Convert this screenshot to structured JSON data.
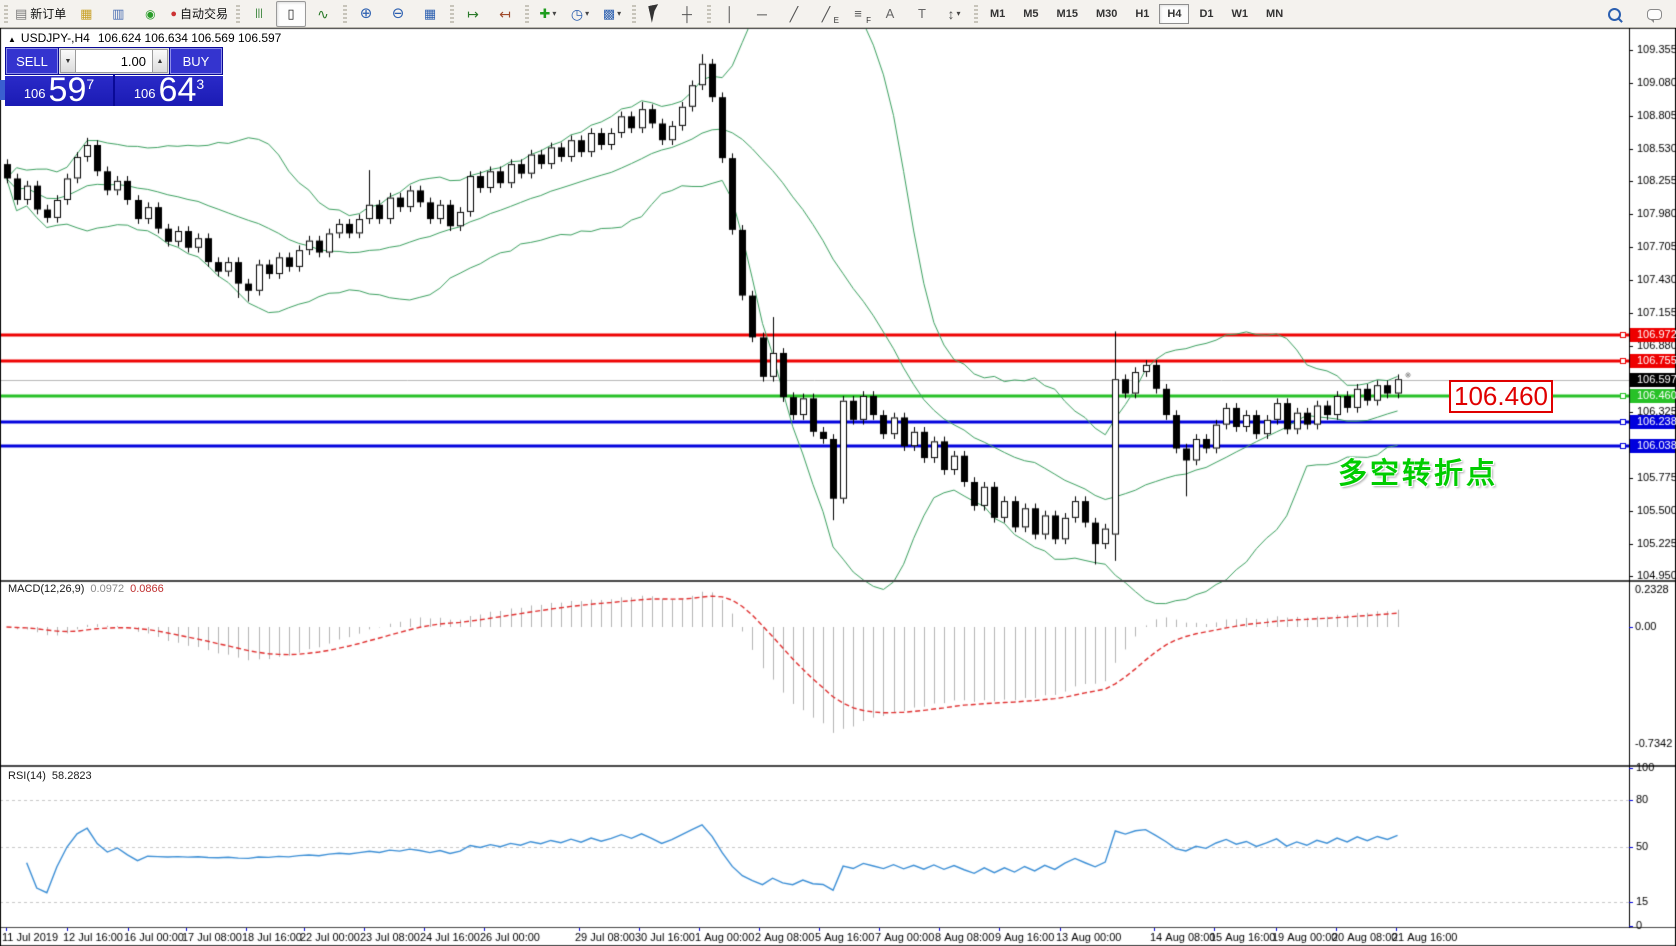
{
  "toolbar": {
    "groups": [
      {
        "items": [
          {
            "name": "new-order",
            "glyph": "doc",
            "label": "新订单"
          },
          {
            "name": "charts",
            "glyph": "chart-gold"
          },
          {
            "name": "market-watch",
            "glyph": "monitor"
          },
          {
            "name": "signals",
            "glyph": "signal"
          },
          {
            "name": "autotrading",
            "glyph": "autotrade",
            "label": "自动交易"
          }
        ]
      },
      {
        "items": [
          {
            "name": "bars-chart",
            "glyph": "bars"
          },
          {
            "name": "candles-chart",
            "glyph": "candles",
            "active": true
          },
          {
            "name": "line-chart",
            "glyph": "linechart"
          }
        ]
      },
      {
        "items": [
          {
            "name": "zoom-in",
            "glyph": "zoomin"
          },
          {
            "name": "zoom-out",
            "glyph": "zoomout"
          },
          {
            "name": "tile-windows",
            "glyph": "tile"
          }
        ]
      },
      {
        "items": [
          {
            "name": "auto-scroll",
            "glyph": "autoscroll"
          },
          {
            "name": "chart-shift",
            "glyph": "chartshift"
          }
        ]
      },
      {
        "items": [
          {
            "name": "indicators",
            "glyph": "indicators",
            "dropdown": true
          },
          {
            "name": "periods",
            "glyph": "clock",
            "dropdown": true
          },
          {
            "name": "templates",
            "glyph": "template",
            "dropdown": true
          }
        ]
      },
      {
        "items": [
          {
            "name": "cursor",
            "glyph": "cursor-css"
          },
          {
            "name": "crosshair",
            "glyph": "crosshair"
          }
        ]
      },
      {
        "items": [
          {
            "name": "vertical-line",
            "glyph": "vline"
          },
          {
            "name": "horizontal-line",
            "glyph": "hline"
          },
          {
            "name": "trendline",
            "glyph": "trend"
          },
          {
            "name": "equidistant-channel",
            "glyph": "channel",
            "sub": "E"
          },
          {
            "name": "fibonacci",
            "glyph": "fibo",
            "sub": "F"
          },
          {
            "name": "text",
            "glyph": "textA"
          },
          {
            "name": "text-label",
            "glyph": "labelT"
          },
          {
            "name": "arrows",
            "glyph": "arrows",
            "dropdown": true
          }
        ]
      }
    ],
    "timeframes": {
      "items": [
        "M1",
        "M5",
        "M15",
        "M30",
        "H1",
        "H4",
        "D1",
        "W1",
        "MN"
      ],
      "active": "H4"
    },
    "right": [
      {
        "name": "search",
        "glyph": "search-css"
      },
      {
        "name": "chat",
        "glyph": "chat-css"
      }
    ]
  },
  "chart_title": {
    "symbol": "USDJPY-,H4",
    "ohlc": "106.624 106.634 106.569 106.597",
    "collapse_glyph": "▲"
  },
  "trade_panel": {
    "sell_label": "SELL",
    "buy_label": "BUY",
    "volume": "1.00",
    "sell_price": {
      "prefix": "106",
      "main": "59",
      "sup": "7"
    },
    "buy_price": {
      "prefix": "106",
      "main": "64",
      "sup": "3"
    }
  },
  "indicators": {
    "macd": {
      "label": "MACD(12,26,9)",
      "value_main": "0.0972",
      "value_signal": "0.0866"
    },
    "rsi": {
      "label": "RSI(14)",
      "value": "58.2823"
    }
  },
  "price_tag": {
    "text": "106.460"
  },
  "annotation": {
    "text": "多空转折点",
    "color": "#00cc00"
  },
  "chart_data": {
    "type": "candlestick",
    "symbol": "USDJPY-",
    "timeframe": "H4",
    "title": "USDJPY-,H4",
    "ohlc_current": {
      "open": 106.624,
      "high": 106.634,
      "low": 106.569,
      "close": 106.597
    },
    "ylim": [
      104.94,
      109.46
    ],
    "open_first": 108.4,
    "closes": [
      108.28,
      108.1,
      108.22,
      108.02,
      107.95,
      108.1,
      108.28,
      108.46,
      108.56,
      108.34,
      108.18,
      108.26,
      108.1,
      107.94,
      108.04,
      107.86,
      107.75,
      107.84,
      107.7,
      107.78,
      107.58,
      107.5,
      107.58,
      107.4,
      107.34,
      107.56,
      107.48,
      107.62,
      107.54,
      107.68,
      107.76,
      107.66,
      107.82,
      107.9,
      107.82,
      107.94,
      108.06,
      107.94,
      108.12,
      108.04,
      108.18,
      108.08,
      107.94,
      108.06,
      107.88,
      108.0,
      108.3,
      108.2,
      108.34,
      108.24,
      108.4,
      108.32,
      108.48,
      108.4,
      108.54,
      108.46,
      108.6,
      108.5,
      108.66,
      108.56,
      108.66,
      108.8,
      108.7,
      108.86,
      108.74,
      108.6,
      108.72,
      108.88,
      109.06,
      109.24,
      108.96,
      108.45,
      107.85,
      107.3,
      106.95,
      106.62,
      106.82,
      106.45,
      106.3,
      106.44,
      106.16,
      106.1,
      105.6,
      106.42,
      106.26,
      106.46,
      106.3,
      106.14,
      106.28,
      106.04,
      106.16,
      105.94,
      106.08,
      105.84,
      105.96,
      105.74,
      105.54,
      105.7,
      105.44,
      105.58,
      105.36,
      105.52,
      105.3,
      105.46,
      105.26,
      105.44,
      105.58,
      105.4,
      105.22,
      105.35,
      106.6,
      106.48,
      106.66,
      106.72,
      106.52,
      106.3,
      106.02,
      105.92,
      106.1,
      106.02,
      106.22,
      106.36,
      106.2,
      106.3,
      106.14,
      106.26,
      106.4,
      106.18,
      106.32,
      106.22,
      106.38,
      106.3,
      106.46,
      106.36,
      106.52,
      106.42,
      106.55,
      106.48,
      106.6
    ],
    "specials": {
      "8": {
        "h": 108.62
      },
      "23": {
        "l": 107.28
      },
      "24": {
        "l": 107.25
      },
      "36": {
        "h": 108.35
      },
      "63": {
        "h": 108.92
      },
      "69": {
        "h": 109.32
      },
      "76": {
        "h": 107.12
      },
      "82": {
        "l": 105.42
      },
      "108": {
        "l": 105.05
      },
      "110": {
        "o": 105.3,
        "h": 107.0,
        "l": 105.08
      },
      "117": {
        "l": 105.62
      }
    },
    "bollinger": {
      "period": 20,
      "deviation": 2,
      "color": "#3ba05f"
    },
    "price_lines": [
      {
        "value": 106.972,
        "label": "106.972",
        "color": "#ee0000",
        "width": 3
      },
      {
        "value": 106.755,
        "label": "106.755",
        "color": "#ee0000",
        "width": 3
      },
      {
        "value": 106.46,
        "label": "106.460",
        "color": "#27c127",
        "width": 3
      },
      {
        "value": 106.238,
        "label": "106.238",
        "color": "#0000dd",
        "width": 3
      },
      {
        "value": 106.038,
        "label": "106.038",
        "color": "#0000dd",
        "width": 3
      }
    ],
    "current_price": {
      "value": 106.597,
      "label": "106.597",
      "line_color": "#b8b8b8",
      "badge_color": "#000000"
    },
    "price_axis": {
      "ticks": [
        109.355,
        109.08,
        108.805,
        108.53,
        108.255,
        107.98,
        107.705,
        107.43,
        107.155,
        106.88,
        106.325,
        105.775,
        105.5,
        105.225,
        104.95
      ]
    },
    "macd": {
      "fast": 12,
      "slow": 26,
      "signal": 9,
      "axis_labels": {
        "top": "0.2328",
        "zero": "0.00",
        "bottom": "-0.7342"
      },
      "top_value": 0.2328,
      "bottom_value": -0.7342,
      "histogram_color": "#b4b4b4",
      "signal_color": "#e03030"
    },
    "rsi": {
      "period": 14,
      "value": 58.2823,
      "levels": [
        100,
        80,
        50,
        15,
        0
      ],
      "dashed_levels": [
        80,
        50,
        15
      ],
      "line_color": "#3c8fd6"
    },
    "x_axis": {
      "labels": [
        {
          "text": "11 Jul 2019",
          "x": 2
        },
        {
          "text": "12 Jul 16:00",
          "x": 63
        },
        {
          "text": "16 Jul 00:00",
          "x": 124
        },
        {
          "text": "17 Jul 08:00",
          "x": 182
        },
        {
          "text": "18 Jul 16:00",
          "x": 242
        },
        {
          "text": "22 Jul 00:00",
          "x": 300
        },
        {
          "text": "23 Jul 08:00",
          "x": 360
        },
        {
          "text": "24 Jul 16:00",
          "x": 420
        },
        {
          "text": "26 Jul 00:00",
          "x": 480
        },
        {
          "text": "29 Jul 08:00",
          "x": 575
        },
        {
          "text": "30 Jul 16:00",
          "x": 635
        },
        {
          "text": "1 Aug 00:00",
          "x": 695
        },
        {
          "text": "2 Aug 08:00",
          "x": 755
        },
        {
          "text": "5 Aug 16:00",
          "x": 815
        },
        {
          "text": "7 Aug 00:00",
          "x": 875
        },
        {
          "text": "8 Aug 08:00",
          "x": 935
        },
        {
          "text": "9 Aug 16:00",
          "x": 995
        },
        {
          "text": "13 Aug 00:00",
          "x": 1056
        },
        {
          "text": "14 Aug 08:00",
          "x": 1150
        },
        {
          "text": "15 Aug 16:00",
          "x": 1210
        },
        {
          "text": "19 Aug 00:00",
          "x": 1272
        },
        {
          "text": "20 Aug 08:00",
          "x": 1332
        },
        {
          "text": "21 Aug 16:00",
          "x": 1392
        }
      ]
    }
  }
}
